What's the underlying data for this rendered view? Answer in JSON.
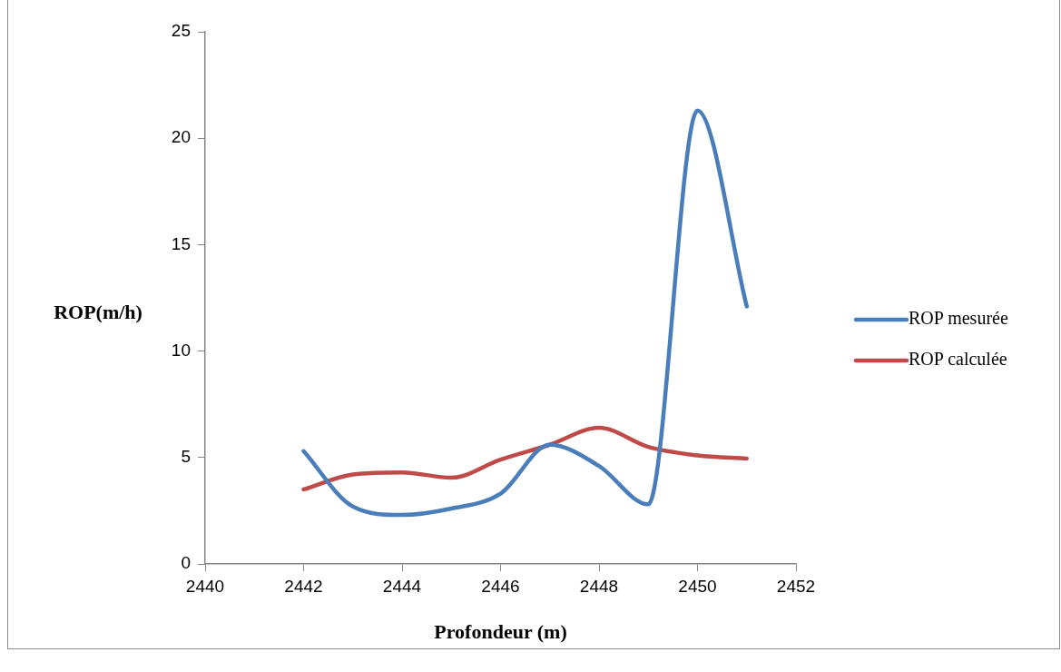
{
  "chart_data": {
    "type": "line",
    "xlabel": "Profondeur (m)",
    "ylabel": "ROP(m/h)",
    "x": [
      2442,
      2443,
      2444,
      2445,
      2446,
      2447,
      2448,
      2449,
      2450,
      2451
    ],
    "series": [
      {
        "name": "ROP mesurée",
        "color": "#4a7ebb",
        "values": [
          5.3,
          2.7,
          2.3,
          2.6,
          3.3,
          5.6,
          4.6,
          2.8,
          21.3,
          12.1
        ]
      },
      {
        "name": "ROP calculée",
        "color": "#be4b48",
        "values": [
          3.5,
          4.2,
          4.3,
          4.05,
          4.9,
          5.6,
          6.4,
          5.5,
          5.1,
          4.95
        ]
      }
    ],
    "xlim": [
      2440,
      2452
    ],
    "xticks": [
      2440,
      2442,
      2444,
      2446,
      2448,
      2450,
      2452
    ],
    "ylim": [
      0,
      25
    ],
    "yticks": [
      0,
      5,
      10,
      15,
      20,
      25
    ],
    "grid": false,
    "legend": "right",
    "marker": "none",
    "line_style": "solid"
  }
}
